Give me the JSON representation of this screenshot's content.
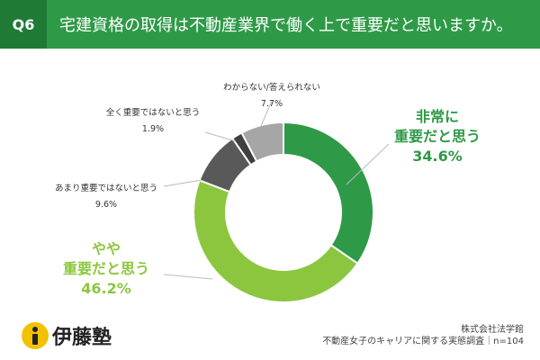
{
  "header": {
    "badge": "Q6",
    "question": "宅建資格の取得は不動産業界で働く上で重要だと思いますか。",
    "colors": {
      "bar": "#2e9a47",
      "badge": "#1f7a36"
    }
  },
  "chart_data": {
    "type": "pie",
    "subtype": "donut",
    "slices": [
      {
        "label": "非常に\n重要だと思う",
        "value": 34.6,
        "value_label": "34.6%",
        "color": "#2e9a47"
      },
      {
        "label": "やや\n重要だと思う",
        "value": 46.2,
        "value_label": "46.2%",
        "color": "#8cc63f"
      },
      {
        "label": "あまり重要ではないと思う",
        "value": 9.6,
        "value_label": "9.6%",
        "color": "#595959"
      },
      {
        "label": "全く重要ではないと思う",
        "value": 1.9,
        "value_label": "1.9%",
        "color": "#404040"
      },
      {
        "label": "わからない/答えられない",
        "value": 7.7,
        "value_label": "7.7%",
        "color": "#a6a6a6"
      }
    ],
    "start": "top",
    "direction": "clockwise"
  },
  "footer": {
    "logo_text": "伊藤塾",
    "logo_icon": "info-i-icon",
    "source_line1": "株式会社法学館",
    "source_line2": "不動産女子のキャリアに関する実態調査｜n=104"
  }
}
